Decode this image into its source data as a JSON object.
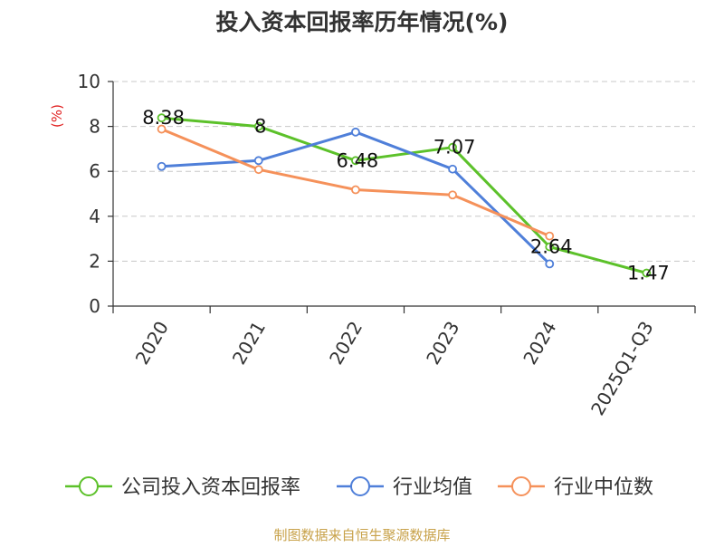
{
  "chart_data": {
    "type": "line",
    "title": "投入资本回报率历年情况(%)",
    "ylabel": "(%)",
    "xlabel": "",
    "categories": [
      "2020",
      "2021",
      "2022",
      "2023",
      "2024",
      "2025Q1-Q3"
    ],
    "ylim": [
      0,
      10
    ],
    "yticks": [
      0,
      2,
      4,
      6,
      8,
      10
    ],
    "grid": true,
    "legend_position": "bottom",
    "series": [
      {
        "name": "公司投入资本回报率",
        "color": "#5cc12a",
        "values": [
          8.38,
          8,
          6.48,
          7.07,
          2.64,
          1.47
        ],
        "labels": [
          "8.38",
          "8",
          "6.48",
          "7.07",
          "2.64",
          "1.47"
        ],
        "show_labels": true
      },
      {
        "name": "行业均值",
        "color": "#4f7fd9",
        "values": [
          6.22,
          6.48,
          7.75,
          6.1,
          1.88,
          null
        ],
        "show_labels": false
      },
      {
        "name": "行业中位数",
        "color": "#f5915a",
        "values": [
          7.88,
          6.08,
          5.18,
          4.95,
          3.12,
          null
        ],
        "show_labels": false
      }
    ]
  },
  "source_text": "制图数据来自恒生聚源数据库",
  "colors": {
    "title": "#333333",
    "axis": "#333333",
    "grid": "#c8c8c8",
    "ylabel": "#e02020",
    "source": "#c8a24a",
    "tick_label": "#333333",
    "data_label": "#111111"
  }
}
